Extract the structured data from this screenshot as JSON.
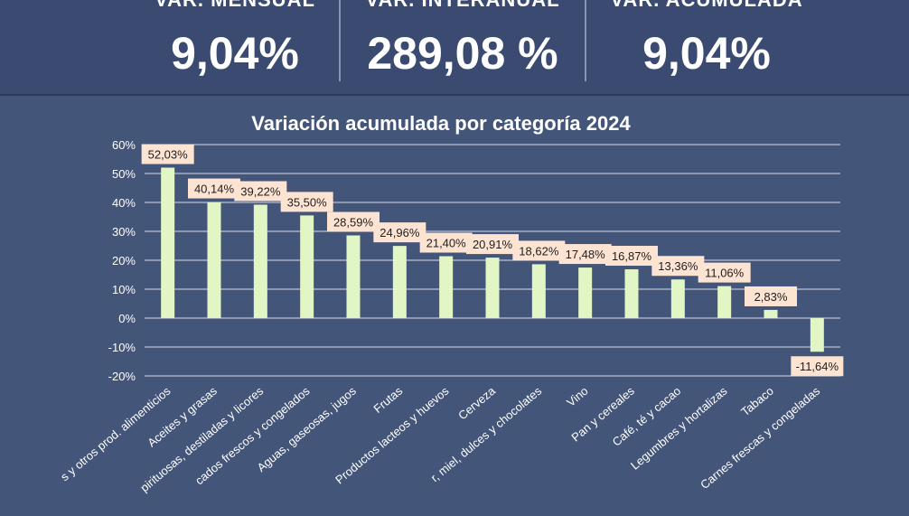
{
  "kpis": [
    {
      "title": "VAR. MENSUAL",
      "value": "9,04%"
    },
    {
      "title": "VAR. INTERANUAL",
      "value": "289,08 %"
    },
    {
      "title": "VAR. ACUMULADA",
      "value": "9,04%"
    }
  ],
  "colors": {
    "bar": "#e2f5c4",
    "label_bg": "#fde3d2",
    "grid": "#d8dde8",
    "text": "#ffffff"
  },
  "chart_data": {
    "type": "bar",
    "title": "Variación acumulada por categoría 2024",
    "xlabel": "",
    "ylabel": "",
    "ylim": [
      -20,
      60
    ],
    "yticks": [
      "60%",
      "50%",
      "40%",
      "30%",
      "20%",
      "10%",
      "0%",
      "-10%",
      "-20%"
    ],
    "ytick_values": [
      60,
      50,
      40,
      30,
      20,
      10,
      0,
      -10,
      -20
    ],
    "categories": [
      "s y otros prod. alimenticios",
      "Aceites y grasas",
      "pirituosas, destiladas y licores",
      "cados frescos y congelados",
      "Aguas, gaseosas, jugos",
      "Frutas",
      "Productos lacteos y huevos",
      "Cerveza",
      "r, miel, dulces y chocolates",
      "Vino",
      "Pan y cereales",
      "Café, té y cacao",
      "Legumbres y hortalizas",
      "Tabaco",
      "Carnes frescas y congeladas"
    ],
    "values": [
      52.03,
      40.14,
      39.22,
      35.5,
      28.59,
      24.96,
      21.4,
      20.91,
      18.62,
      17.48,
      16.87,
      13.36,
      11.06,
      2.83,
      -11.64
    ],
    "data_labels": [
      "52,03%",
      "40,14%",
      "39,22%",
      "35,50%",
      "28,59%",
      "24,96%",
      "21,40%",
      "20,91%",
      "18,62%",
      "17,48%",
      "16,87%",
      "13,36%",
      "11,06%",
      "2,83%",
      "-11,64%"
    ]
  }
}
